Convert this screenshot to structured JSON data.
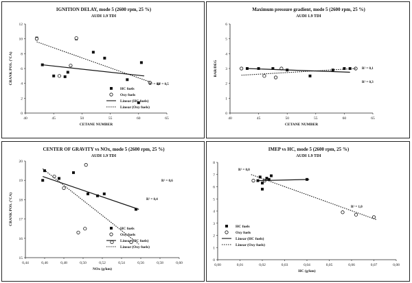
{
  "chart_data": [
    {
      "type": "scatter",
      "title": "IGNITION DELAY, mode 5 (2600 rpm, 25 %)",
      "subtitle": "AUDI 1.9 TDI",
      "xlabel": "CETANE NUMBER",
      "ylabel": "CRANK POS. (°CA)",
      "xlim": [
        40,
        65
      ],
      "ylim": [
        0,
        12
      ],
      "xticks": [
        "40",
        "45",
        "50",
        "55",
        "60",
        "65"
      ],
      "yticks": [
        "0",
        "2",
        "4",
        "6",
        "8",
        "10",
        "12"
      ],
      "legend": "right",
      "series": [
        {
          "name": "HC fuels",
          "marker": "square",
          "points": [
            [
              42,
              10.1
            ],
            [
              43,
              6.5
            ],
            [
              45,
              5.0
            ],
            [
              47,
              4.9
            ],
            [
              47.5,
              5.5
            ],
            [
              49,
              10.0
            ],
            [
              52,
              8.2
            ],
            [
              54,
              7.4
            ],
            [
              58,
              4.5
            ],
            [
              60,
              1.4
            ],
            [
              60.5,
              6.8
            ]
          ]
        },
        {
          "name": "Oxy fuels",
          "marker": "circle",
          "points": [
            [
              42,
              10.0
            ],
            [
              46,
              5.0
            ],
            [
              48,
              6.4
            ],
            [
              49,
              10.1
            ],
            [
              62,
              4.1
            ]
          ]
        },
        {
          "name": "Linear (HC fuels)",
          "style": "solid",
          "points": [
            [
              43,
              6.5
            ],
            [
              61,
              5.0
            ]
          ]
        },
        {
          "name": "Linear (Oxy fuels)",
          "style": "dotted",
          "points": [
            [
              42,
              9.6
            ],
            [
              62,
              4.2
            ]
          ]
        }
      ],
      "annotations": [
        "R² = 0,1",
        "R² = 0,5"
      ]
    },
    {
      "type": "scatter",
      "title": "Maximum pressure gradient, mode 5 (2600 rpm, 25 %)",
      "subtitle": "AUDI 1.9 TDI",
      "xlabel": "CETANE NUMBER",
      "ylabel": "BAR/DEG",
      "xlim": [
        40,
        65
      ],
      "ylim": [
        0,
        6
      ],
      "xticks": [
        "40",
        "45",
        "50",
        "55",
        "60",
        "65"
      ],
      "yticks": [
        "0",
        "1",
        "2",
        "3",
        "4",
        "5",
        "6"
      ],
      "series": [
        {
          "name": "HC fuels",
          "marker": "square",
          "points": [
            [
              43,
              3.0
            ],
            [
              45,
              3.0
            ],
            [
              47.5,
              3.0
            ],
            [
              50,
              2.9
            ],
            [
              54,
              2.5
            ],
            [
              58,
              2.9
            ],
            [
              60,
              3.0
            ],
            [
              61,
              3.0
            ]
          ]
        },
        {
          "name": "Oxy fuels",
          "marker": "circle",
          "points": [
            [
              42,
              3.0
            ],
            [
              46,
              2.5
            ],
            [
              48,
              2.4
            ],
            [
              49,
              3.0
            ],
            [
              62,
              3.0
            ]
          ]
        },
        {
          "name": "Linear (HC fuels)",
          "style": "solid",
          "points": [
            [
              43,
              3.0
            ],
            [
              61,
              2.75
            ]
          ]
        },
        {
          "name": "Linear (Oxy fuels)",
          "style": "dotted",
          "points": [
            [
              42,
              2.55
            ],
            [
              62,
              3.0
            ]
          ]
        }
      ],
      "annotations": [
        "R² = 0,1",
        "R² = 0,3"
      ]
    },
    {
      "type": "scatter",
      "title": "CENTER OF GRAVITY vs NOx, mode 5 (2600 rpm, 25 %)",
      "subtitle": "AUDI 1.9 TDI",
      "xlabel": "NOx (g/km)",
      "ylabel": "CRANK POS. (°CA)",
      "xlim": [
        0.44,
        0.6
      ],
      "ylim": [
        15,
        20
      ],
      "xticks": [
        "0,44",
        "0,46",
        "0,48",
        "0,50",
        "0,52",
        "0,54",
        "0,56",
        "0,58",
        "0,60"
      ],
      "yticks": [
        "15",
        "16",
        "17",
        "18",
        "19",
        "20"
      ],
      "legend": "right",
      "series": [
        {
          "name": "HC fuels",
          "marker": "square",
          "points": [
            [
              0.458,
              19.0
            ],
            [
              0.46,
              19.5
            ],
            [
              0.475,
              19.1
            ],
            [
              0.49,
              19.4
            ],
            [
              0.505,
              18.3
            ],
            [
              0.515,
              18.2
            ],
            [
              0.522,
              18.3
            ],
            [
              0.555,
              17.5
            ]
          ]
        },
        {
          "name": "Oxy fuels",
          "marker": "circle",
          "points": [
            [
              0.47,
              19.2
            ],
            [
              0.48,
              18.6
            ],
            [
              0.495,
              16.3
            ],
            [
              0.502,
              16.5
            ],
            [
              0.503,
              19.8
            ],
            [
              0.53,
              15.8
            ],
            [
              0.55,
              15.8
            ]
          ]
        },
        {
          "name": "Linear (HC fuels)",
          "style": "solid",
          "points": [
            [
              0.458,
              19.2
            ],
            [
              0.558,
              17.5
            ]
          ]
        },
        {
          "name": "Linear (Oxy fuels)",
          "style": "dotted",
          "points": [
            [
              0.458,
              19.6
            ],
            [
              0.558,
              15.7
            ]
          ]
        }
      ],
      "annotations": [
        "R² = 0,6",
        "R² = 0,4"
      ]
    },
    {
      "type": "scatter",
      "title": "IMEP vs HC, mode 5 (2600 rpm, 25 %)",
      "subtitle": "AUDI 1.9 TDI",
      "xlabel": "HC (g/km)",
      "ylabel": "CRANK POS. (°CA)",
      "xlim": [
        0,
        0.08
      ],
      "ylim": [
        0,
        8
      ],
      "xticks": [
        "0,00",
        "0,01",
        "0,02",
        "0,03",
        "0,04",
        "0,05",
        "0,06",
        "0,07",
        "0,08"
      ],
      "yticks": [
        "0",
        "1",
        "2",
        "3",
        "4",
        "5",
        "6",
        "7",
        "8"
      ],
      "legend": "bottom-left",
      "series": [
        {
          "name": "HC fuels",
          "marker": "square",
          "points": [
            [
              0.018,
              6.5
            ],
            [
              0.019,
              6.8
            ],
            [
              0.02,
              5.8
            ],
            [
              0.02,
              6.3
            ],
            [
              0.022,
              6.7
            ],
            [
              0.023,
              6.6
            ],
            [
              0.024,
              6.9
            ],
            [
              0.04,
              6.6
            ]
          ]
        },
        {
          "name": "Oxy fuels",
          "marker": "circle",
          "points": [
            [
              0.016,
              6.5
            ],
            [
              0.021,
              6.5
            ],
            [
              0.056,
              3.9
            ],
            [
              0.062,
              3.7
            ],
            [
              0.07,
              3.5
            ]
          ]
        },
        {
          "name": "Linear (HC fuels)",
          "style": "solid",
          "points": [
            [
              0.018,
              6.5
            ],
            [
              0.041,
              6.6
            ]
          ]
        },
        {
          "name": "Linear (Oxy fuels)",
          "style": "dotted",
          "points": [
            [
              0.015,
              7.0
            ],
            [
              0.071,
              3.3
            ]
          ]
        }
      ],
      "annotations": [
        "R² = 0,0",
        "R² = 1,0"
      ]
    }
  ]
}
